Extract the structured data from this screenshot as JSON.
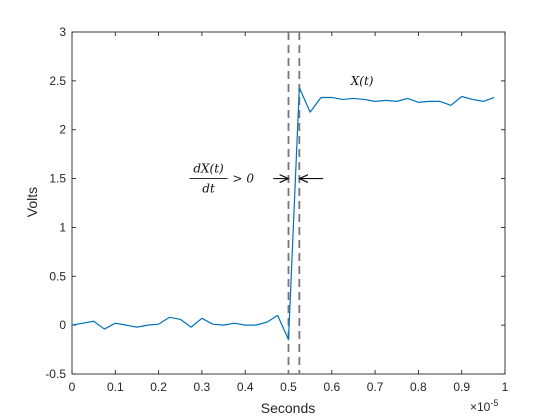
{
  "chart_data": {
    "type": "line",
    "xlabel": "Seconds",
    "ylabel": "Volts",
    "x_exponent_label": "×10",
    "x_exponent_power": "-5",
    "xlim": [
      0,
      1
    ],
    "ylim": [
      -0.5,
      3
    ],
    "x_scale": 1e-05,
    "x_ticks": [
      "0",
      "0.1",
      "0.2",
      "0.3",
      "0.4",
      "0.5",
      "0.6",
      "0.7",
      "0.8",
      "0.9",
      "1"
    ],
    "y_ticks": [
      "-0.5",
      "0",
      "0.5",
      "1",
      "1.5",
      "2",
      "2.5",
      "3"
    ],
    "grid": false,
    "box": true,
    "series": [
      {
        "color": "#0072bd",
        "x": [
          0,
          0.025,
          0.05,
          0.075,
          0.1,
          0.125,
          0.15,
          0.175,
          0.2,
          0.225,
          0.25,
          0.275,
          0.3,
          0.325,
          0.35,
          0.375,
          0.4,
          0.425,
          0.45,
          0.475,
          0.5,
          0.525,
          0.55,
          0.575,
          0.6,
          0.625,
          0.65,
          0.675,
          0.7,
          0.725,
          0.75,
          0.775,
          0.8,
          0.825,
          0.85,
          0.875,
          0.9,
          0.925,
          0.95,
          0.975
        ],
        "y": [
          0,
          0.02,
          0.04,
          -0.04,
          0.02,
          0.0,
          -0.02,
          0.0,
          0.01,
          0.08,
          0.06,
          -0.02,
          0.07,
          0.01,
          0.0,
          0.02,
          0.0,
          0.0,
          0.03,
          0.1,
          -0.15,
          2.43,
          2.18,
          2.33,
          2.33,
          2.31,
          2.32,
          2.31,
          2.29,
          2.3,
          2.29,
          2.32,
          2.28,
          2.29,
          2.29,
          2.25,
          2.34,
          2.31,
          2.29,
          2.33
        ]
      }
    ],
    "reference_lines": [
      {
        "x": 0.5,
        "color": "#777777",
        "dash": "dashed"
      },
      {
        "x": 0.525,
        "color": "#777777",
        "dash": "dashed"
      }
    ],
    "annotations": [
      {
        "text": "X(t)",
        "x": 0.67,
        "y": 2.5
      },
      {
        "text": "dX(t)/dt > 0",
        "numerator": "dX(t)",
        "denominator": "dt",
        "relation": "> 0",
        "x": 0.38,
        "y": 1.5
      }
    ],
    "arrows": [
      {
        "from": [
          0.465,
          1.5
        ],
        "to": [
          0.5,
          1.5
        ]
      },
      {
        "from": [
          0.58,
          1.5
        ],
        "to": [
          0.525,
          1.5
        ]
      }
    ]
  }
}
